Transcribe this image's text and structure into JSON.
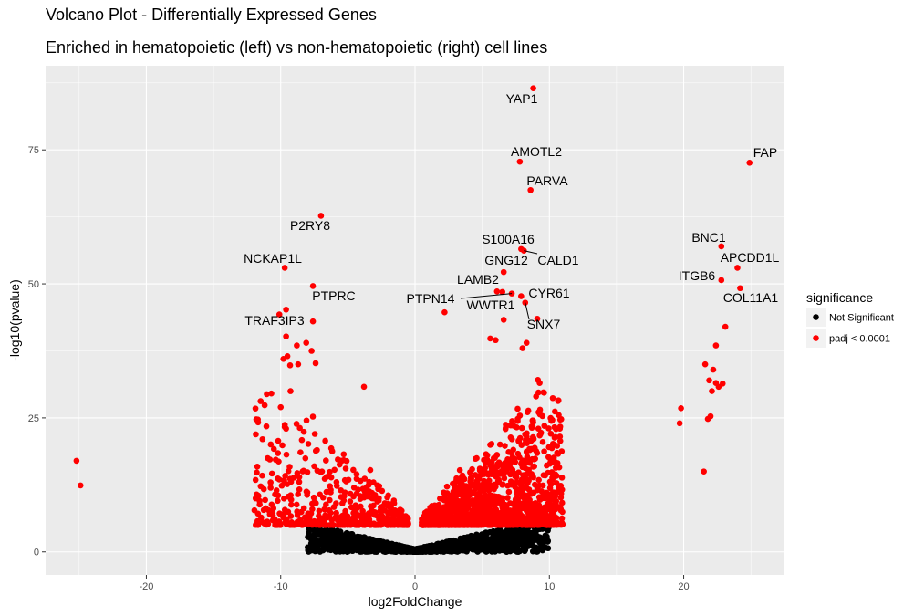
{
  "chart_data": {
    "type": "scatter",
    "title": "Volcano Plot - Differentially Expressed Genes",
    "subtitle": "Enriched in hematopoietic (left) vs non-hematopoietic (right) cell lines",
    "xlabel": "log2FoldChange",
    "ylabel": "-log10(pvalue)",
    "xlim": [
      -27.5,
      27.5
    ],
    "ylim": [
      -4.3,
      90.7
    ],
    "x_ticks": [
      -20,
      -10,
      0,
      10,
      20
    ],
    "y_ticks": [
      0,
      25,
      50,
      75
    ],
    "grid": true,
    "legend": {
      "title": "significance",
      "position": "right",
      "items": [
        {
          "label": "Not Significant",
          "color": "#000000"
        },
        {
          "label": "padj < 0.0001",
          "color": "#ff0000"
        }
      ]
    },
    "labeled_points": [
      {
        "gene": "YAP1",
        "x": 8.8,
        "y": 86.5
      },
      {
        "gene": "AMOTL2",
        "x": 7.8,
        "y": 72.8
      },
      {
        "gene": "FAP",
        "x": 24.9,
        "y": 72.6
      },
      {
        "gene": "PARVA",
        "x": 8.6,
        "y": 67.5
      },
      {
        "gene": "P2RY8",
        "x": -7.0,
        "y": 62.7
      },
      {
        "gene": "BNC1",
        "x": 22.8,
        "y": 57.0
      },
      {
        "gene": "S100A16",
        "x": 7.9,
        "y": 56.5
      },
      {
        "gene": "CALD1",
        "x": 8.1,
        "y": 56.2
      },
      {
        "gene": "NCKAP1L",
        "x": -9.7,
        "y": 53.0
      },
      {
        "gene": "APCDD1L",
        "x": 24.0,
        "y": 53.0
      },
      {
        "gene": "GNG12",
        "x": 6.6,
        "y": 52.2
      },
      {
        "gene": "ITGB6",
        "x": 22.8,
        "y": 50.7
      },
      {
        "gene": "LAMB2",
        "x": 6.5,
        "y": 48.5
      },
      {
        "gene": "PTPRC",
        "x": -7.6,
        "y": 49.6
      },
      {
        "gene": "PTPN14",
        "x": 7.2,
        "y": 48.2
      },
      {
        "gene": "CYR61",
        "x": 7.9,
        "y": 47.7
      },
      {
        "gene": "WWTR1",
        "x": 6.1,
        "y": 48.6
      },
      {
        "gene": "COL11A1",
        "x": 24.2,
        "y": 49.2
      },
      {
        "gene": "TRAF3IP3",
        "x": -7.6,
        "y": 43.0
      },
      {
        "gene": "SNX7",
        "x": 8.2,
        "y": 46.5
      }
    ],
    "significant_outliers": [
      {
        "x": -25.2,
        "y": 17.0
      },
      {
        "x": -24.9,
        "y": 12.4
      },
      {
        "x": -10.1,
        "y": 44.3
      },
      {
        "x": -9.6,
        "y": 45.2
      },
      {
        "x": -9.6,
        "y": 40.2
      },
      {
        "x": -9.8,
        "y": 36.0
      },
      {
        "x": -9.5,
        "y": 36.5
      },
      {
        "x": -8.8,
        "y": 38.5
      },
      {
        "x": -8.1,
        "y": 39.0
      },
      {
        "x": -7.7,
        "y": 37.5
      },
      {
        "x": -7.4,
        "y": 35.2
      },
      {
        "x": -9.3,
        "y": 34.8
      },
      {
        "x": -8.7,
        "y": 35.0
      },
      {
        "x": -10.0,
        "y": 27.0
      },
      {
        "x": -3.8,
        "y": 30.8
      },
      {
        "x": 2.2,
        "y": 44.7
      },
      {
        "x": 6.6,
        "y": 43.3
      },
      {
        "x": 5.6,
        "y": 39.8
      },
      {
        "x": 6.0,
        "y": 39.5
      },
      {
        "x": 8.3,
        "y": 39.0
      },
      {
        "x": 8.0,
        "y": 38.0
      },
      {
        "x": 9.1,
        "y": 43.5
      },
      {
        "x": 19.7,
        "y": 24.0
      },
      {
        "x": 19.8,
        "y": 26.8
      },
      {
        "x": 21.5,
        "y": 15.0
      },
      {
        "x": 21.6,
        "y": 35.0
      },
      {
        "x": 21.8,
        "y": 24.8
      },
      {
        "x": 22.0,
        "y": 25.3
      },
      {
        "x": 21.9,
        "y": 32.0
      },
      {
        "x": 22.2,
        "y": 34.0
      },
      {
        "x": 22.1,
        "y": 30.0
      },
      {
        "x": 22.6,
        "y": 30.8
      },
      {
        "x": 22.4,
        "y": 31.5
      },
      {
        "x": 22.9,
        "y": 31.4
      },
      {
        "x": 22.4,
        "y": 38.5
      },
      {
        "x": 23.1,
        "y": 42.0
      }
    ],
    "distribution": {
      "not_significant": {
        "x_range": [
          -8.5,
          10.5
        ],
        "y_range": [
          0,
          5
        ]
      },
      "significant_left": {
        "x_range": [
          -12,
          -0.5
        ],
        "y_range": [
          5,
          30
        ]
      },
      "significant_right": {
        "x_range": [
          0.5,
          11
        ],
        "y_range": [
          5,
          33
        ]
      }
    }
  }
}
